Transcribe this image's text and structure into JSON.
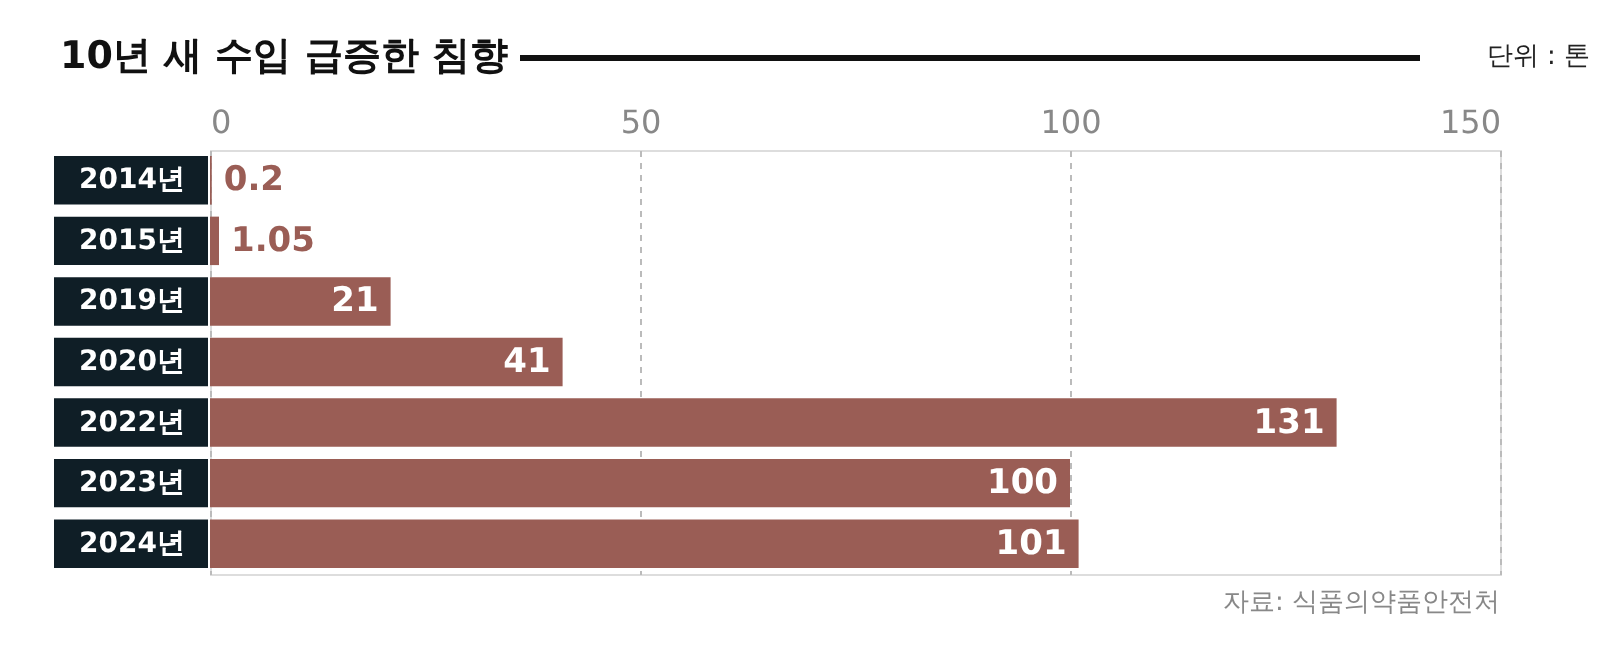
{
  "chart_data": {
    "type": "bar",
    "orientation": "horizontal",
    "title": "10년 새 수입 급증한 침향",
    "subtitle": "단위 : 톤",
    "categories": [
      "2014년",
      "2015년",
      "2019년",
      "2020년",
      "2022년",
      "2023년",
      "2024년"
    ],
    "values": [
      0.2,
      1.05,
      21,
      41,
      131,
      100,
      101
    ],
    "color": "#9a5d55",
    "xlim": [
      0,
      150
    ],
    "xticks": [
      0,
      50,
      100,
      150
    ],
    "grid": "x",
    "data_labels": true,
    "annotations": [
      "자료: 식품의약품안전처"
    ]
  }
}
